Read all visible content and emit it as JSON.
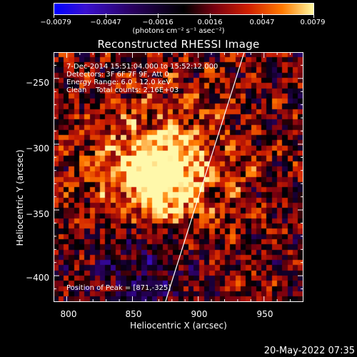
{
  "colorbar": {
    "ticks": [
      "−0.0079",
      "−0.0047",
      "−0.0016",
      "0.0016",
      "0.0047",
      "0.0079"
    ],
    "unit": "(photons cm⁻² s⁻¹ asec⁻²)"
  },
  "title": "Reconstructed RHESSI Image",
  "info": {
    "line1": "7-Dec-2014 15:51:04.000 to 15:52:12.000",
    "line2": "Detectors: 3F 6F 7F 9F, Att 0",
    "line3": "Energy Range: 6.0 - 12.0 keV",
    "line4": "Clean    Total counts: 2.16E+03"
  },
  "peak": "Position of Peak = [871,-325]",
  "axes": {
    "xlabel": "Heliocentric X (arcsec)",
    "ylabel": "Heliocentric Y (arcsec)",
    "xticks": [
      "800",
      "850",
      "900",
      "950"
    ],
    "yticks": [
      "−250",
      "−300",
      "−350",
      "−400"
    ]
  },
  "date": "20-May-2022 07:35",
  "chart_data": {
    "type": "heatmap",
    "title": "Reconstructed RHESSI Image",
    "xlabel": "Heliocentric X (arcsec)",
    "ylabel": "Heliocentric Y (arcsec)",
    "xlim": [
      790,
      980
    ],
    "ylim": [
      -420,
      -230
    ],
    "colorbar_range": [
      -0.0079,
      0.0079
    ],
    "peak": [
      871,
      -325
    ],
    "limb": [
      [
        935,
        -230
      ],
      [
        875,
        -420
      ]
    ]
  }
}
